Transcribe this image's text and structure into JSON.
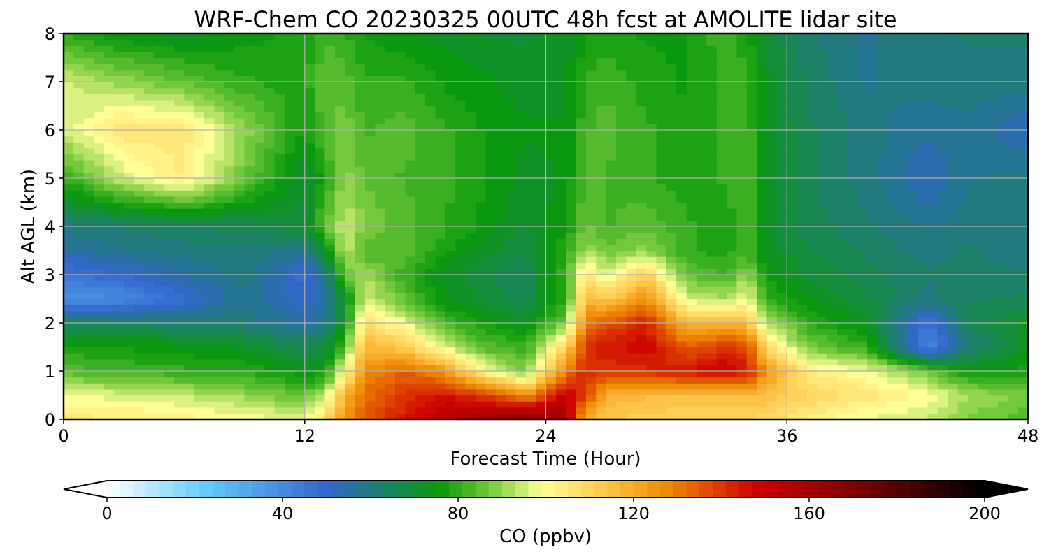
{
  "chart_data": {
    "type": "heatmap",
    "title": "WRF-Chem CO  20230325 00UTC 48h fcst at AMOLITE lidar site",
    "xlabel": "Forecast Time (Hour)",
    "ylabel": "Alt AGL (km)",
    "xlim": [
      0,
      48
    ],
    "ylim": [
      0,
      8
    ],
    "x_ticks": [
      0,
      12,
      24,
      36,
      48
    ],
    "y_ticks": [
      0,
      1,
      2,
      3,
      4,
      5,
      6,
      7,
      8
    ],
    "grid": true,
    "colorbar": {
      "label": "CO  (ppbv)",
      "range": [
        0,
        200
      ],
      "ticks": [
        0,
        40,
        80,
        120,
        160,
        200
      ],
      "extend": "both",
      "placement": "bottom",
      "colors": [
        {
          "v": 0,
          "c": "#ffffff"
        },
        {
          "v": 22,
          "c": "#66ccff"
        },
        {
          "v": 50,
          "c": "#3366cc"
        },
        {
          "v": 62,
          "c": "#1e7f6e"
        },
        {
          "v": 76,
          "c": "#0a9a0a"
        },
        {
          "v": 88,
          "c": "#7ccc40"
        },
        {
          "v": 99,
          "c": "#ffff99"
        },
        {
          "v": 112,
          "c": "#ffcc55"
        },
        {
          "v": 128,
          "c": "#ee8800"
        },
        {
          "v": 148,
          "c": "#cc0000"
        },
        {
          "v": 170,
          "c": "#800000"
        },
        {
          "v": 200,
          "c": "#000000"
        }
      ]
    },
    "x": [
      0,
      3,
      6,
      9,
      12,
      13,
      14,
      15,
      17,
      19,
      21,
      23,
      25,
      26,
      27,
      29,
      31,
      33,
      34,
      35,
      37,
      40,
      43,
      45,
      48
    ],
    "y": [
      0,
      0.5,
      1,
      1.5,
      2,
      2.5,
      3,
      3.5,
      4,
      5,
      6,
      7,
      8
    ],
    "values": [
      [
        105,
        104,
        102,
        100,
        97,
        107,
        125,
        135,
        145,
        155,
        162,
        170,
        158,
        118,
        113,
        111,
        110,
        110,
        110,
        108,
        102,
        97,
        94,
        88,
        84
      ],
      [
        98,
        96,
        94,
        90,
        85,
        94,
        118,
        132,
        140,
        145,
        138,
        125,
        152,
        138,
        118,
        116,
        115,
        114,
        116,
        115,
        110,
        105,
        100,
        92,
        87
      ],
      [
        84,
        82,
        80,
        79,
        74,
        75,
        100,
        126,
        134,
        124,
        100,
        88,
        128,
        143,
        140,
        142,
        145,
        150,
        145,
        124,
        104,
        98,
        86,
        76,
        78
      ],
      [
        78,
        76,
        75,
        72,
        66,
        68,
        84,
        118,
        112,
        96,
        84,
        80,
        110,
        140,
        145,
        148,
        135,
        140,
        138,
        108,
        88,
        80,
        40,
        60,
        72
      ],
      [
        66,
        64,
        62,
        60,
        55,
        58,
        74,
        108,
        98,
        82,
        76,
        72,
        88,
        130,
        135,
        143,
        116,
        118,
        115,
        92,
        80,
        72,
        45,
        65,
        72
      ],
      [
        38,
        40,
        48,
        58,
        50,
        55,
        72,
        96,
        85,
        74,
        70,
        66,
        78,
        118,
        112,
        126,
        96,
        92,
        100,
        80,
        74,
        68,
        60,
        64,
        65
      ],
      [
        45,
        50,
        55,
        60,
        48,
        56,
        86,
        92,
        80,
        72,
        68,
        64,
        82,
        106,
        96,
        112,
        85,
        82,
        90,
        76,
        70,
        66,
        62,
        62,
        62
      ],
      [
        55,
        58,
        60,
        60,
        58,
        70,
        95,
        82,
        85,
        77,
        72,
        68,
        80,
        92,
        86,
        90,
        80,
        78,
        82,
        72,
        68,
        64,
        60,
        62,
        60
      ],
      [
        60,
        62,
        64,
        66,
        70,
        85,
        95,
        88,
        84,
        80,
        75,
        70,
        76,
        86,
        82,
        85,
        80,
        78,
        82,
        72,
        66,
        62,
        58,
        60,
        60
      ],
      [
        80,
        95,
        104,
        86,
        70,
        78,
        90,
        85,
        82,
        80,
        77,
        72,
        74,
        84,
        82,
        80,
        78,
        80,
        82,
        72,
        65,
        60,
        52,
        58,
        60
      ],
      [
        95,
        106,
        105,
        90,
        76,
        84,
        88,
        82,
        84,
        80,
        76,
        74,
        74,
        82,
        84,
        80,
        77,
        80,
        82,
        72,
        65,
        60,
        56,
        58,
        52
      ],
      [
        95,
        90,
        85,
        80,
        78,
        85,
        84,
        80,
        80,
        76,
        74,
        72,
        72,
        80,
        82,
        78,
        76,
        80,
        80,
        72,
        64,
        58,
        60,
        60,
        60
      ],
      [
        80,
        74,
        72,
        75,
        78,
        82,
        80,
        76,
        74,
        72,
        70,
        70,
        72,
        76,
        78,
        76,
        76,
        82,
        78,
        70,
        62,
        58,
        60,
        62,
        62
      ]
    ]
  }
}
